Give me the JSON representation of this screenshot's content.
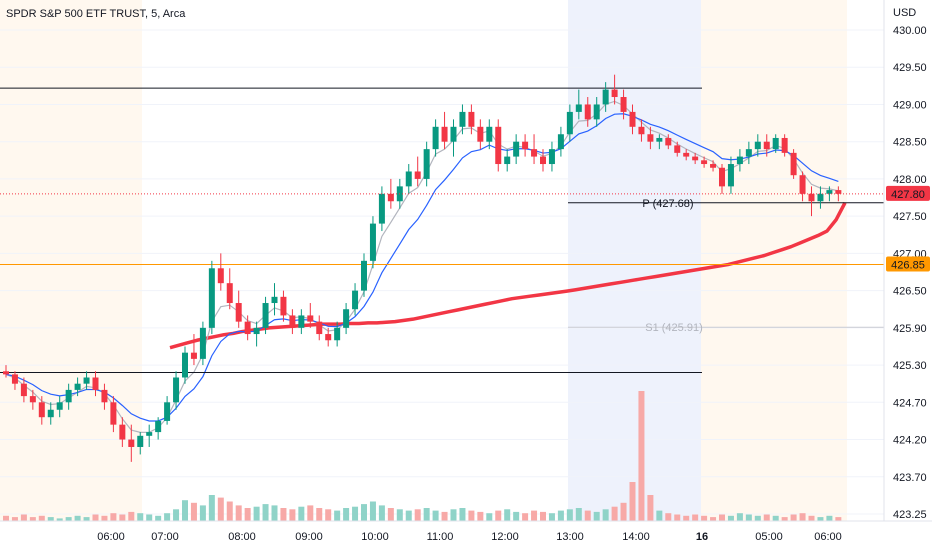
{
  "header": {
    "title": "SPDR S&P 500 ETF TRUST, 5, Arca"
  },
  "chart_data": {
    "type": "candlestick",
    "currency": "USD",
    "y_ticks": [
      "430.00",
      "429.50",
      "429.00",
      "428.50",
      "428.00",
      "427.50",
      "427.00",
      "426.50",
      "425.90",
      "425.30",
      "424.70",
      "424.20",
      "423.70",
      "423.25"
    ],
    "x_ticks": [
      "06:00",
      "07:00",
      "08:00",
      "09:00",
      "10:00",
      "11:00",
      "12:00",
      "13:00",
      "14:00",
      "16",
      "05:00",
      "06:00"
    ],
    "price_label": {
      "text": "427.80",
      "value": 427.8,
      "color": "#f23645"
    },
    "line_label": {
      "text": "426.85",
      "value": 426.85,
      "color": "#ff9800"
    },
    "pivots": [
      {
        "text": "P (427.68)",
        "value": 427.68
      },
      {
        "text": "S1 (425.91)",
        "value": 425.91
      }
    ],
    "hlines": [
      429.22,
      425.18
    ],
    "candles": [
      [
        425.2,
        425.3,
        425.1,
        425.15
      ],
      [
        425.15,
        425.2,
        424.9,
        425.0
      ],
      [
        425.0,
        425.1,
        424.7,
        424.8
      ],
      [
        424.8,
        424.9,
        424.6,
        424.7
      ],
      [
        424.7,
        424.8,
        424.4,
        424.5
      ],
      [
        424.5,
        424.7,
        424.4,
        424.6
      ],
      [
        424.6,
        424.8,
        424.5,
        424.7
      ],
      [
        424.7,
        425.0,
        424.6,
        424.9
      ],
      [
        424.9,
        425.1,
        424.8,
        425.0
      ],
      [
        425.0,
        425.2,
        424.9,
        425.1
      ],
      [
        425.1,
        425.2,
        424.8,
        424.9
      ],
      [
        424.9,
        425.0,
        424.6,
        424.7
      ],
      [
        424.7,
        424.8,
        424.3,
        424.4
      ],
      [
        424.4,
        424.5,
        424.1,
        424.2
      ],
      [
        424.2,
        424.4,
        423.9,
        424.1
      ],
      [
        424.1,
        424.3,
        424.0,
        424.25
      ],
      [
        424.25,
        424.4,
        424.1,
        424.3
      ],
      [
        424.3,
        424.5,
        424.2,
        424.45
      ],
      [
        424.45,
        424.8,
        424.4,
        424.7
      ],
      [
        424.7,
        425.2,
        424.6,
        425.1
      ],
      [
        425.1,
        425.6,
        425.0,
        425.5
      ],
      [
        425.5,
        425.8,
        425.3,
        425.4
      ],
      [
        425.4,
        426.0,
        425.3,
        425.9
      ],
      [
        425.9,
        426.9,
        425.8,
        426.8
      ],
      [
        426.8,
        427.0,
        426.5,
        426.6
      ],
      [
        426.6,
        426.8,
        426.2,
        426.3
      ],
      [
        426.3,
        426.5,
        425.9,
        426.0
      ],
      [
        426.0,
        426.1,
        425.7,
        425.8
      ],
      [
        425.8,
        426.0,
        425.6,
        425.9
      ],
      [
        425.9,
        426.4,
        425.8,
        426.3
      ],
      [
        426.3,
        426.6,
        426.1,
        426.4
      ],
      [
        426.4,
        426.5,
        426.0,
        426.1
      ],
      [
        426.1,
        426.2,
        425.8,
        425.9
      ],
      [
        425.9,
        426.2,
        425.8,
        426.1
      ],
      [
        426.1,
        426.3,
        425.9,
        426.0
      ],
      [
        426.0,
        426.1,
        425.7,
        425.8
      ],
      [
        425.8,
        425.9,
        425.6,
        425.7
      ],
      [
        425.7,
        426.0,
        425.6,
        425.9
      ],
      [
        425.9,
        426.3,
        425.8,
        426.2
      ],
      [
        426.2,
        426.6,
        426.1,
        426.5
      ],
      [
        426.5,
        427.0,
        426.4,
        426.9
      ],
      [
        426.9,
        427.5,
        426.8,
        427.4
      ],
      [
        427.4,
        427.9,
        427.3,
        427.8
      ],
      [
        427.8,
        428.0,
        427.6,
        427.7
      ],
      [
        427.7,
        428.0,
        427.6,
        427.9
      ],
      [
        427.9,
        428.2,
        427.8,
        428.1
      ],
      [
        428.1,
        428.3,
        427.9,
        428.0
      ],
      [
        428.0,
        428.5,
        427.9,
        428.4
      ],
      [
        428.4,
        428.8,
        428.3,
        428.7
      ],
      [
        428.7,
        428.9,
        428.4,
        428.5
      ],
      [
        428.5,
        428.8,
        428.3,
        428.7
      ],
      [
        428.7,
        429.0,
        428.6,
        428.9
      ],
      [
        428.9,
        429.0,
        428.6,
        428.7
      ],
      [
        428.7,
        428.8,
        428.4,
        428.5
      ],
      [
        428.5,
        428.8,
        428.4,
        428.7
      ],
      [
        428.7,
        428.8,
        428.1,
        428.2
      ],
      [
        428.2,
        428.4,
        428.1,
        428.3
      ],
      [
        428.3,
        428.6,
        428.2,
        428.5
      ],
      [
        428.5,
        428.6,
        428.3,
        428.4
      ],
      [
        428.4,
        428.6,
        428.2,
        428.3
      ],
      [
        428.3,
        428.4,
        428.1,
        428.2
      ],
      [
        428.2,
        428.5,
        428.1,
        428.4
      ],
      [
        428.4,
        428.7,
        428.3,
        428.6
      ],
      [
        428.6,
        429.0,
        428.5,
        428.9
      ],
      [
        428.9,
        429.2,
        428.8,
        429.0
      ],
      [
        429.0,
        429.1,
        428.7,
        428.8
      ],
      [
        428.8,
        429.1,
        428.7,
        429.0
      ],
      [
        429.0,
        429.3,
        428.9,
        429.2
      ],
      [
        429.2,
        429.4,
        429.0,
        429.1
      ],
      [
        429.1,
        429.2,
        428.8,
        428.9
      ],
      [
        428.9,
        429.0,
        428.6,
        428.7
      ],
      [
        428.7,
        428.8,
        428.5,
        428.6
      ],
      [
        428.6,
        428.7,
        428.4,
        428.5
      ],
      [
        428.5,
        428.6,
        428.4,
        428.55
      ],
      [
        428.55,
        428.6,
        428.4,
        428.45
      ],
      [
        428.45,
        428.5,
        428.3,
        428.35
      ],
      [
        428.35,
        428.4,
        428.25,
        428.3
      ],
      [
        428.3,
        428.35,
        428.2,
        428.25
      ],
      [
        428.25,
        428.3,
        428.15,
        428.2
      ],
      [
        428.2,
        428.25,
        428.1,
        428.15
      ],
      [
        428.15,
        428.2,
        427.8,
        427.9
      ],
      [
        427.9,
        428.3,
        427.8,
        428.2
      ],
      [
        428.2,
        428.4,
        428.1,
        428.3
      ],
      [
        428.3,
        428.5,
        428.2,
        428.4
      ],
      [
        428.4,
        428.6,
        428.3,
        428.5
      ],
      [
        428.5,
        428.6,
        428.3,
        428.4
      ],
      [
        428.4,
        428.6,
        428.35,
        428.55
      ],
      [
        428.55,
        428.6,
        428.3,
        428.35
      ],
      [
        428.35,
        428.4,
        428.0,
        428.05
      ],
      [
        428.05,
        428.1,
        427.7,
        427.8
      ],
      [
        427.8,
        427.9,
        427.5,
        427.7
      ],
      [
        427.7,
        427.9,
        427.6,
        427.8
      ],
      [
        427.8,
        427.9,
        427.7,
        427.85
      ],
      [
        427.85,
        427.9,
        427.7,
        427.8
      ]
    ],
    "volume": [
      4,
      3,
      5,
      3,
      4,
      3,
      2,
      3,
      4,
      3,
      5,
      4,
      6,
      5,
      7,
      6,
      5,
      4,
      6,
      9,
      16,
      14,
      12,
      20,
      18,
      15,
      12,
      10,
      11,
      13,
      12,
      10,
      9,
      11,
      12,
      10,
      9,
      8,
      10,
      11,
      13,
      15,
      12,
      10,
      9,
      8,
      9,
      10,
      8,
      7,
      9,
      10,
      8,
      7,
      6,
      8,
      9,
      7,
      6,
      8,
      7,
      6,
      8,
      9,
      10,
      8,
      7,
      9,
      11,
      14,
      30,
      100,
      20,
      8,
      6,
      5,
      4,
      5,
      4,
      3,
      5,
      4,
      6,
      5,
      4,
      5,
      4,
      3,
      5,
      6,
      4,
      3,
      4,
      3
    ],
    "vwap": [
      425.58,
      425.62,
      425.66,
      425.7,
      425.73,
      425.76,
      425.79,
      425.81,
      425.84,
      425.86,
      425.88,
      425.9,
      425.91,
      425.92,
      425.93,
      425.94,
      425.95,
      425.96,
      425.96,
      425.96,
      425.97,
      425.97,
      425.98,
      425.98,
      425.99,
      426.0,
      426.02,
      426.04,
      426.07,
      426.1,
      426.13,
      426.16,
      426.19,
      426.22,
      426.25,
      426.28,
      426.31,
      426.34,
      426.37,
      426.39,
      426.41,
      426.43,
      426.45,
      426.47,
      426.49,
      426.51,
      426.53,
      426.55,
      426.57,
      426.59,
      426.61,
      426.63,
      426.65,
      426.67,
      426.69,
      426.71,
      426.73,
      426.75,
      426.77,
      426.79,
      426.81,
      426.83,
      426.85,
      426.88,
      426.91,
      426.94,
      426.97,
      427.01,
      427.05,
      427.09,
      427.14,
      427.19,
      427.24,
      427.3,
      427.45,
      427.68
    ]
  }
}
